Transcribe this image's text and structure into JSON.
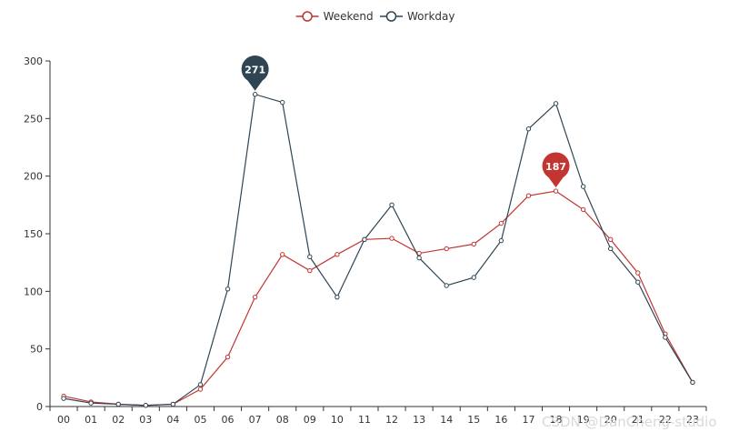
{
  "watermark": "CSDN @DanCheng-studio",
  "chart_data": {
    "type": "line",
    "categories": [
      "00",
      "01",
      "02",
      "03",
      "04",
      "05",
      "06",
      "07",
      "08",
      "09",
      "10",
      "11",
      "12",
      "13",
      "14",
      "15",
      "16",
      "17",
      "18",
      "19",
      "20",
      "21",
      "22",
      "23"
    ],
    "series": [
      {
        "name": "Weekend",
        "color": "#c23531",
        "values": [
          9,
          4,
          2,
          1,
          2,
          15,
          43,
          95,
          132,
          118,
          132,
          145,
          146,
          133,
          137,
          141,
          159,
          183,
          187,
          171,
          145,
          116,
          63,
          21
        ],
        "max_pin": "187"
      },
      {
        "name": "Workday",
        "color": "#2f4554",
        "values": [
          7,
          3,
          2,
          1,
          2,
          19,
          102,
          271,
          264,
          130,
          95,
          145,
          175,
          129,
          105,
          112,
          144,
          241,
          263,
          191,
          137,
          108,
          60,
          21
        ],
        "max_pin": "271"
      }
    ],
    "ylim": [
      0,
      300
    ],
    "yticks": [
      "0",
      "50",
      "100",
      "150",
      "200",
      "250",
      "300"
    ],
    "legend_position": "top-center",
    "grid": false
  }
}
